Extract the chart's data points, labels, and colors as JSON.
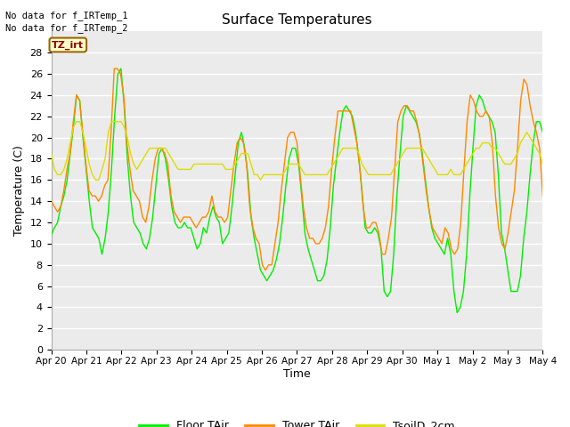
{
  "title": "Surface Temperatures",
  "ylabel": "Temperature (C)",
  "xlabel": "Time",
  "annotation_line1": "No data for f_IRTemp_1",
  "annotation_line2": "No data for f_IRTemp_2",
  "tz_label": "TZ_irt",
  "ylim": [
    0,
    30
  ],
  "yticks": [
    0,
    2,
    4,
    6,
    8,
    10,
    12,
    14,
    16,
    18,
    20,
    22,
    24,
    26,
    28
  ],
  "xtick_labels": [
    "Apr 20",
    "Apr 21",
    "Apr 22",
    "Apr 23",
    "Apr 24",
    "Apr 25",
    "Apr 26",
    "Apr 27",
    "Apr 28",
    "Apr 29",
    "Apr 30",
    "May 1",
    "May 2",
    "May 3",
    "May 4"
  ],
  "fig_bg": "#ffffff",
  "plot_bg": "#ebebeb",
  "grid_color": "#ffffff",
  "line_colors": {
    "floor": "#00ee00",
    "tower": "#ff8800",
    "tsoil": "#dddd00"
  },
  "legend_labels": [
    "Floor TAir",
    "Tower TAir",
    "TsoilD_2cm"
  ],
  "floor_tair": [
    10.8,
    11.5,
    12.0,
    13.5,
    14.5,
    16.0,
    18.5,
    21.0,
    24.0,
    23.5,
    20.0,
    17.0,
    14.0,
    11.5,
    11.0,
    10.5,
    9.0,
    10.5,
    13.0,
    17.0,
    22.0,
    26.0,
    26.5,
    23.0,
    18.0,
    14.5,
    12.0,
    11.5,
    11.0,
    10.0,
    9.5,
    10.5,
    12.5,
    15.5,
    18.5,
    19.0,
    18.0,
    16.0,
    13.5,
    12.0,
    11.5,
    11.5,
    12.0,
    11.5,
    11.5,
    10.5,
    9.5,
    10.0,
    11.5,
    11.0,
    12.5,
    13.5,
    12.5,
    12.0,
    10.0,
    10.5,
    11.0,
    13.5,
    16.5,
    19.5,
    20.5,
    19.0,
    16.5,
    12.5,
    10.5,
    9.0,
    7.5,
    7.0,
    6.5,
    7.0,
    7.5,
    8.5,
    10.0,
    12.5,
    15.5,
    18.0,
    19.0,
    19.0,
    17.5,
    14.5,
    11.0,
    9.5,
    8.5,
    7.5,
    6.5,
    6.5,
    7.0,
    8.5,
    11.5,
    15.5,
    18.0,
    20.5,
    22.5,
    23.0,
    22.5,
    22.0,
    20.5,
    18.0,
    15.0,
    11.5,
    11.0,
    11.0,
    11.5,
    11.0,
    9.5,
    5.5,
    5.0,
    5.5,
    9.0,
    14.5,
    18.5,
    22.0,
    23.0,
    22.5,
    22.0,
    21.5,
    20.5,
    18.5,
    16.0,
    13.5,
    11.5,
    10.5,
    10.0,
    9.5,
    9.0,
    10.5,
    9.0,
    5.5,
    3.5,
    4.0,
    5.5,
    9.0,
    14.5,
    19.0,
    23.0,
    24.0,
    23.5,
    22.5,
    22.0,
    21.5,
    20.5,
    16.5,
    11.0,
    9.5,
    7.5,
    5.5,
    5.5,
    5.5,
    7.0,
    10.5,
    13.0,
    16.5,
    19.5,
    21.5,
    21.5,
    20.5
  ],
  "tower_tair": [
    14.0,
    13.5,
    13.0,
    13.5,
    15.0,
    17.0,
    18.5,
    21.5,
    24.0,
    23.5,
    20.5,
    17.5,
    15.0,
    14.5,
    14.5,
    14.0,
    14.5,
    15.5,
    16.0,
    20.5,
    26.5,
    26.5,
    26.0,
    24.0,
    19.5,
    17.0,
    15.0,
    14.5,
    14.0,
    12.5,
    12.0,
    13.5,
    16.0,
    18.0,
    19.0,
    19.0,
    18.5,
    17.5,
    14.5,
    13.0,
    12.5,
    12.0,
    12.5,
    12.5,
    12.5,
    12.0,
    11.5,
    12.0,
    12.5,
    12.5,
    13.0,
    14.5,
    13.0,
    12.5,
    12.5,
    12.0,
    12.5,
    15.0,
    17.5,
    19.5,
    20.0,
    19.5,
    17.5,
    13.5,
    11.5,
    10.5,
    10.0,
    8.0,
    7.5,
    8.0,
    8.0,
    10.0,
    12.0,
    15.0,
    17.5,
    20.0,
    20.5,
    20.5,
    19.5,
    16.5,
    13.5,
    11.5,
    10.5,
    10.5,
    10.0,
    10.0,
    10.5,
    11.5,
    13.5,
    17.0,
    20.0,
    22.5,
    22.5,
    22.5,
    22.5,
    22.5,
    21.0,
    19.5,
    17.0,
    13.5,
    11.5,
    11.5,
    12.0,
    12.0,
    11.0,
    9.0,
    9.0,
    10.5,
    12.5,
    17.0,
    21.5,
    22.5,
    23.0,
    23.0,
    22.5,
    22.5,
    21.5,
    20.0,
    17.5,
    15.0,
    13.0,
    11.5,
    11.0,
    10.5,
    10.0,
    11.5,
    11.0,
    9.5,
    9.0,
    9.5,
    12.0,
    17.0,
    21.5,
    24.0,
    23.5,
    22.5,
    22.0,
    22.0,
    22.5,
    22.0,
    19.5,
    14.5,
    11.5,
    10.0,
    9.5,
    11.0,
    13.0,
    15.0,
    19.0,
    23.5,
    25.5,
    25.0,
    23.0,
    21.5,
    20.5,
    19.0,
    14.5
  ],
  "tsoil_2cm": [
    18.5,
    17.0,
    16.5,
    16.5,
    17.0,
    18.0,
    19.5,
    21.0,
    21.5,
    21.5,
    20.5,
    19.0,
    17.5,
    16.5,
    16.0,
    16.0,
    17.0,
    18.0,
    20.5,
    21.5,
    21.5,
    21.5,
    21.5,
    21.0,
    20.0,
    18.5,
    17.5,
    17.0,
    17.5,
    18.0,
    18.5,
    19.0,
    19.0,
    19.0,
    19.0,
    19.0,
    19.0,
    18.5,
    18.0,
    17.5,
    17.0,
    17.0,
    17.0,
    17.0,
    17.0,
    17.5,
    17.5,
    17.5,
    17.5,
    17.5,
    17.5,
    17.5,
    17.5,
    17.5,
    17.5,
    17.0,
    17.0,
    17.0,
    17.5,
    18.0,
    18.5,
    18.5,
    18.5,
    17.5,
    16.5,
    16.5,
    16.0,
    16.5,
    16.5,
    16.5,
    16.5,
    16.5,
    16.5,
    16.5,
    17.0,
    17.5,
    17.5,
    17.5,
    17.5,
    17.0,
    16.5,
    16.5,
    16.5,
    16.5,
    16.5,
    16.5,
    16.5,
    16.5,
    17.0,
    17.5,
    18.0,
    18.5,
    19.0,
    19.0,
    19.0,
    19.0,
    19.0,
    18.5,
    17.5,
    17.0,
    16.5,
    16.5,
    16.5,
    16.5,
    16.5,
    16.5,
    16.5,
    16.5,
    17.0,
    17.5,
    18.0,
    18.5,
    19.0,
    19.0,
    19.0,
    19.0,
    19.0,
    19.0,
    18.5,
    18.0,
    17.5,
    17.0,
    16.5,
    16.5,
    16.5,
    16.5,
    17.0,
    16.5,
    16.5,
    16.5,
    17.0,
    17.5,
    18.0,
    18.5,
    19.0,
    19.0,
    19.5,
    19.5,
    19.5,
    19.0,
    19.0,
    18.5,
    18.0,
    17.5,
    17.5,
    17.5,
    18.0,
    18.5,
    19.5,
    20.0,
    20.5,
    20.0,
    19.5,
    19.0,
    18.5,
    17.5
  ]
}
